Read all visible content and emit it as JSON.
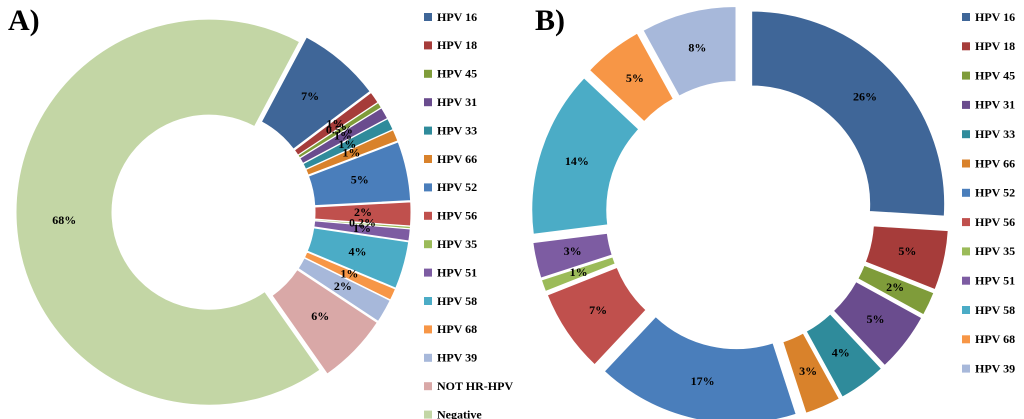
{
  "chart_data": [
    {
      "panel": "A)",
      "type": "pie",
      "style": "donut, exploded slices",
      "series": [
        {
          "name": "HPV 16",
          "value": 7,
          "label": "7%",
          "color": "#3F6698"
        },
        {
          "name": "HPV 18",
          "value": 1,
          "label": "1%",
          "color": "#A63C3A"
        },
        {
          "name": "HPV 45",
          "value": 0.5,
          "label": "0.5%",
          "color": "#7F9C3A"
        },
        {
          "name": "HPV 31",
          "value": 1,
          "label": "1%",
          "color": "#6A4C8E"
        },
        {
          "name": "HPV 33",
          "value": 1,
          "label": "1%",
          "color": "#2F8B9B"
        },
        {
          "name": "HPV 66",
          "value": 1,
          "label": "1%",
          "color": "#D9822B"
        },
        {
          "name": "HPV 52",
          "value": 5,
          "label": "5%",
          "color": "#4A7EBB"
        },
        {
          "name": "HPV 56",
          "value": 2,
          "label": "2%",
          "color": "#C0504D"
        },
        {
          "name": "HPV 35",
          "value": 0.2,
          "label": "0.2%",
          "color": "#9BBB59"
        },
        {
          "name": "HPV 51",
          "value": 1,
          "label": "1%",
          "color": "#7D5CA2"
        },
        {
          "name": "HPV 58",
          "value": 4,
          "label": "4%",
          "color": "#4BACC6"
        },
        {
          "name": "HPV 68",
          "value": 1,
          "label": "1%",
          "color": "#F79646"
        },
        {
          "name": "HPV 39",
          "value": 2,
          "label": "2%",
          "color": "#A7B8DA"
        },
        {
          "name": "NOT HR-HPV",
          "value": 6,
          "label": "6%",
          "color": "#D9A8A7"
        },
        {
          "name": "Negative",
          "value": 68,
          "label": "68%",
          "color": "#C3D6A5"
        }
      ],
      "legend": [
        "HPV 16",
        "HPV 18",
        "HPV 45",
        "HPV 31",
        "HPV 33",
        "HPV 66",
        "HPV 52",
        "HPV 56",
        "HPV 35",
        "HPV 51",
        "HPV 58",
        "HPV 68",
        "HPV 39",
        "NOT HR-HPV",
        "Negative"
      ],
      "legend_position": "right"
    },
    {
      "panel": "B)",
      "type": "pie",
      "style": "donut, exploded slices",
      "series": [
        {
          "name": "HPV 16",
          "value": 26,
          "label": "26%",
          "color": "#3F6698"
        },
        {
          "name": "HPV 18",
          "value": 5,
          "label": "5%",
          "color": "#A63C3A"
        },
        {
          "name": "HPV 45",
          "value": 2,
          "label": "2%",
          "color": "#7F9C3A"
        },
        {
          "name": "HPV 31",
          "value": 5,
          "label": "5%",
          "color": "#6A4C8E"
        },
        {
          "name": "HPV 33",
          "value": 4,
          "label": "4%",
          "color": "#2F8B9B"
        },
        {
          "name": "HPV 66",
          "value": 3,
          "label": "3%",
          "color": "#D9822B"
        },
        {
          "name": "HPV 52",
          "value": 17,
          "label": "17%",
          "color": "#4A7EBB"
        },
        {
          "name": "HPV 56",
          "value": 7,
          "label": "7%",
          "color": "#C0504D"
        },
        {
          "name": "HPV 35",
          "value": 1,
          "label": "1%",
          "color": "#9BBB59"
        },
        {
          "name": "HPV 51",
          "value": 3,
          "label": "3%",
          "color": "#7D5CA2"
        },
        {
          "name": "HPV 58",
          "value": 14,
          "label": "14%",
          "color": "#4BACC6"
        },
        {
          "name": "HPV 68",
          "value": 5,
          "label": "5%",
          "color": "#F79646"
        },
        {
          "name": "HPV 39",
          "value": 8,
          "label": "8%",
          "color": "#A7B8DA"
        }
      ],
      "legend": [
        "HPV 16",
        "HPV 18",
        "HPV 45",
        "HPV 31",
        "HPV 33",
        "HPV 66",
        "HPV 52",
        "HPV 56",
        "HPV 35",
        "HPV 51",
        "HPV 58",
        "HPV 68",
        "HPV 39"
      ],
      "legend_position": "right"
    }
  ]
}
